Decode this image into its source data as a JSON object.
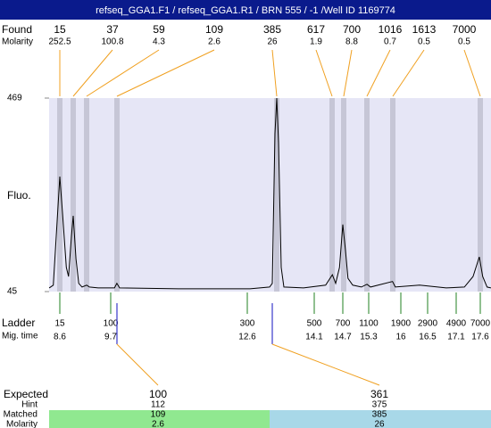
{
  "header": {
    "title": "refseq_GGA1.F1 / refseq_GGA1.R1 / BRN 555 / -1 /Well ID 1169774"
  },
  "found": {
    "label": "Found",
    "molarity_label": "Molarity",
    "sizes": [
      15,
      37,
      59,
      109,
      385,
      617,
      700,
      1016,
      1613,
      7000
    ],
    "molarities": [
      252.5,
      100.8,
      4.3,
      2.6,
      26,
      1.9,
      8.8,
      0.7,
      0.5,
      0.5
    ]
  },
  "chart_data": {
    "type": "line",
    "y_label": "Fluo.",
    "color": "#000000",
    "x": [
      8.37,
      8.46,
      8.54,
      8.6,
      8.66,
      8.74,
      8.79,
      8.85,
      8.89,
      8.95,
      9.01,
      9.08,
      9.18,
      9.24,
      9.43,
      9.78,
      9.83,
      9.89,
      11.14,
      12.66,
      13.1,
      13.16,
      13.22,
      13.26,
      13.3,
      13.36,
      13.42,
      13.86,
      14.34,
      14.48,
      14.55,
      14.63,
      14.7,
      14.76,
      14.82,
      14.93,
      15.13,
      15.26,
      15.34,
      15.82,
      15.88,
      16.35,
      16.89,
      17.27,
      17.45,
      17.58,
      17.65,
      17.74,
      17.82
    ],
    "values": [
      53,
      59,
      196,
      297,
      215,
      98,
      78,
      166,
      211,
      117,
      63,
      55,
      59,
      55,
      53,
      53,
      63,
      53,
      51,
      51,
      55,
      63,
      391,
      469,
      371,
      98,
      55,
      53,
      59,
      82,
      63,
      98,
      192,
      137,
      74,
      59,
      55,
      61,
      55,
      67,
      55,
      59,
      53,
      55,
      78,
      121,
      78,
      55,
      53
    ],
    "ylim": [
      45,
      469
    ],
    "yticks": [
      45,
      469
    ]
  },
  "ladder": {
    "label": "Ladder",
    "time_label": "Mig. time",
    "sizes": [
      15,
      100,
      300,
      500,
      700,
      1100,
      1900,
      2900,
      4900,
      7000
    ],
    "times": [
      8.6,
      9.7,
      12.6,
      14.1,
      14.7,
      15.3,
      16,
      16.5,
      17.1,
      17.6
    ]
  },
  "expected": {
    "labels": [
      "Expected",
      "Hint",
      "Matched",
      "Molarity"
    ],
    "columns": [
      [
        100,
        112,
        109,
        2.6
      ],
      [
        361,
        375,
        385,
        26
      ]
    ]
  }
}
